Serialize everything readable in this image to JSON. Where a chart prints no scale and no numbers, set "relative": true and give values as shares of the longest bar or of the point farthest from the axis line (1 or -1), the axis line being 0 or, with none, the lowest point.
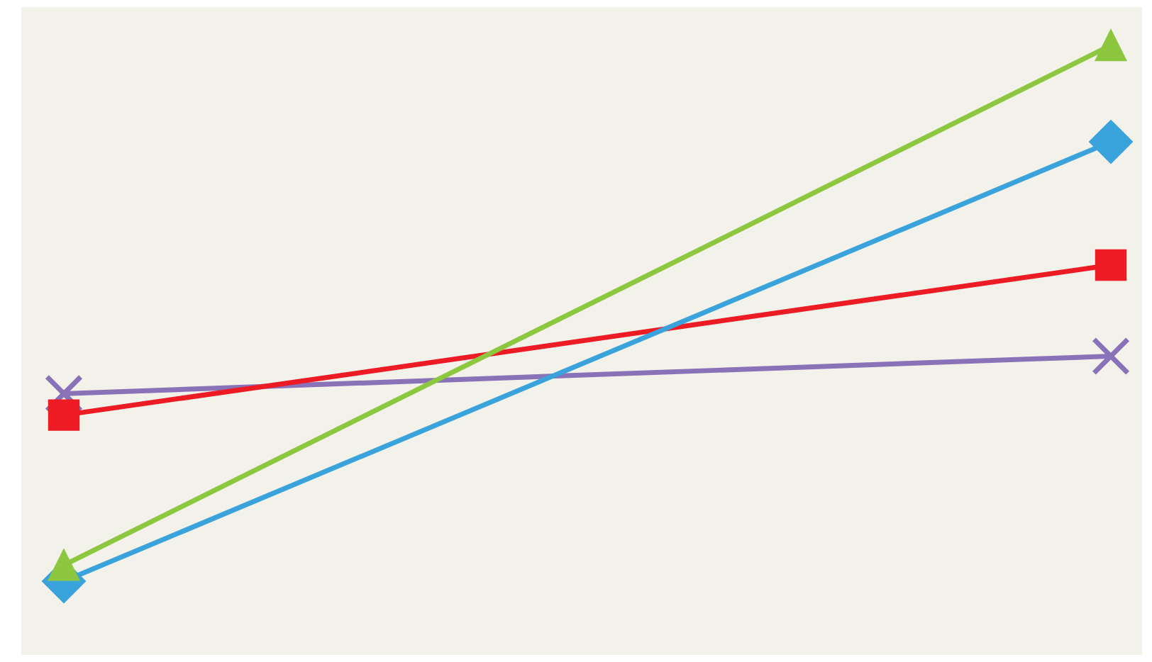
{
  "chart_data": {
    "type": "line",
    "relative": true,
    "categories": [
      null,
      null
    ],
    "grid": false,
    "line_style": "solid",
    "series": [
      {
        "color": "#8dc63f",
        "marker": "triangle",
        "values": [
          0.03,
          1.0
        ]
      },
      {
        "color": "#3aa3dc",
        "marker": "diamond",
        "values": [
          0,
          0.82
        ]
      },
      {
        "color": "#ed1c24",
        "marker": "square",
        "values": [
          0.31,
          0.59
        ]
      },
      {
        "color": "#8a72b8",
        "marker": "cross",
        "values": [
          0.35,
          0.42
        ]
      }
    ]
  }
}
